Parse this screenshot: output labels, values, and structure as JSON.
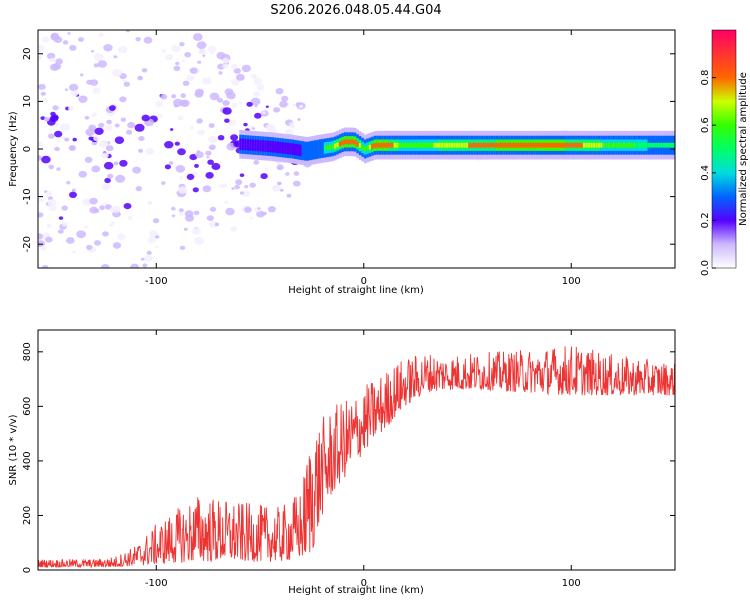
{
  "title": "S206.2026.048.05.44.G04",
  "chart_data": [
    {
      "type": "heatmap",
      "name": "spectrogram",
      "xlabel": "Height of straight line (km)",
      "ylabel": "Frequency (Hz)",
      "xlim": [
        -157,
        150
      ],
      "ylim": [
        -25,
        25
      ],
      "xticks": [
        -100,
        0,
        100
      ],
      "yticks": [
        -20,
        -10,
        0,
        10,
        20
      ],
      "colorbar": {
        "label": "Normalized spectral amplitude",
        "range": [
          0,
          1
        ],
        "ticks": [
          0.0,
          0.2,
          0.4,
          0.6,
          0.8
        ]
      },
      "ridge": {
        "description_values": "frequency centre of main energy band vs height",
        "x": [
          -157,
          -120,
          -100,
          -80,
          -60,
          -45,
          -35,
          -28,
          -22,
          -15,
          -10,
          -5,
          0,
          5,
          10,
          20,
          40,
          60,
          80,
          100,
          120,
          150
        ],
        "y": [
          0,
          0,
          3,
          2,
          1,
          0.5,
          0,
          -0.5,
          0,
          0.5,
          1.5,
          1.5,
          0,
          0.8,
          0.8,
          0.8,
          0.8,
          0.8,
          0.8,
          0.8,
          0.8,
          0.8
        ],
        "amplitude": [
          0.15,
          0.2,
          0.25,
          0.25,
          0.3,
          0.35,
          0.4,
          0.45,
          0.5,
          0.7,
          0.95,
          0.9,
          0.6,
          0.95,
          0.9,
          0.6,
          0.75,
          0.85,
          0.9,
          0.85,
          0.65,
          0.5
        ]
      }
    },
    {
      "type": "line",
      "name": "snr",
      "xlabel": "Height of straight line (km)",
      "ylabel": "SNR (10 * v/v)",
      "xlim": [
        -157,
        150
      ],
      "ylim": [
        0,
        880
      ],
      "xticks": [
        -100,
        0,
        100
      ],
      "yticks": [
        0,
        200,
        400,
        600,
        800
      ],
      "color": "#ee3333",
      "envelope": {
        "x": [
          -157,
          -130,
          -120,
          -110,
          -100,
          -80,
          -60,
          -40,
          -30,
          -25,
          -20,
          -15,
          -10,
          -5,
          0,
          5,
          10,
          15,
          20,
          30,
          40,
          60,
          80,
          100,
          120,
          150
        ],
        "low": [
          10,
          10,
          10,
          15,
          20,
          30,
          30,
          30,
          40,
          60,
          200,
          280,
          330,
          380,
          430,
          480,
          510,
          560,
          600,
          650,
          660,
          660,
          650,
          640,
          640,
          640
        ],
        "high": [
          40,
          40,
          50,
          90,
          170,
          280,
          250,
          230,
          300,
          550,
          560,
          600,
          620,
          650,
          680,
          700,
          730,
          760,
          780,
          800,
          790,
          800,
          810,
          830,
          790,
          760
        ]
      }
    }
  ]
}
